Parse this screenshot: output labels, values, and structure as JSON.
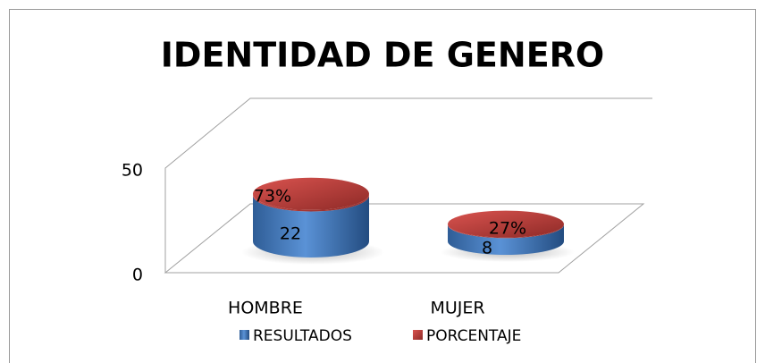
{
  "chart_data": {
    "type": "cylinder3d",
    "title": "IDENTIDAD DE GENERO",
    "categories": [
      "HOMBRE",
      "MUJER"
    ],
    "series": [
      {
        "name": "RESULTADOS",
        "color": "#4f81bd",
        "values": [
          22,
          8
        ]
      },
      {
        "name": "PORCENTAJE",
        "color": "#c0504d",
        "values": [
          0.73,
          0.27
        ],
        "value_labels": [
          "73%",
          "27%"
        ]
      }
    ],
    "stacked": true,
    "ylim": [
      0,
      50
    ],
    "yticks": [
      0,
      50
    ],
    "legend": "bottom"
  }
}
